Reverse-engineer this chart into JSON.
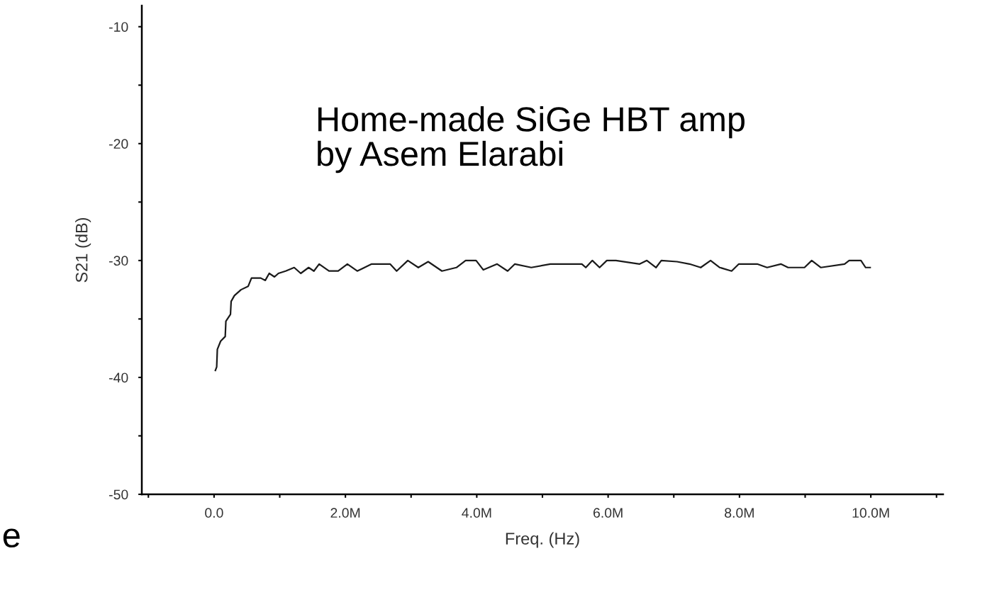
{
  "chart_data": {
    "type": "line",
    "xlabel": "Freq. (Hz)",
    "ylabel": "S21 (dB)",
    "annotations": [
      "Home-made SiGe HBT amp\nby Asem Elarabi",
      "e"
    ],
    "series": [
      {
        "color": "#1a1a1a",
        "x": [
          20000,
          40000,
          50000,
          100000,
          170000,
          180000,
          250000,
          260000,
          310000,
          410000,
          520000,
          570000,
          710000,
          780000,
          840000,
          920000,
          980000,
          1090000,
          1220000,
          1320000,
          1440000,
          1520000,
          1600000,
          1750000,
          1890000,
          2030000,
          2180000,
          2400000,
          2540000,
          2680000,
          2780000,
          2950000,
          3110000,
          3260000,
          3470000,
          3690000,
          3830000,
          3990000,
          4100000,
          4310000,
          4470000,
          4580000,
          4830000,
          5120000,
          5600000,
          5660000,
          5760000,
          5870000,
          5980000,
          6120000,
          6480000,
          6590000,
          6730000,
          6810000,
          7050000,
          7240000,
          7410000,
          7560000,
          7700000,
          7880000,
          7990000,
          8130000,
          8270000,
          8420000,
          8630000,
          8740000,
          8990000,
          9100000,
          9240000,
          9600000,
          9670000,
          9850000,
          9920000,
          9990000
        ],
        "values": [
          -39.4,
          -39.1,
          -37.6,
          -36.9,
          -36.5,
          -35.2,
          -34.6,
          -33.5,
          -33.0,
          -32.5,
          -32.2,
          -31.5,
          -31.5,
          -31.7,
          -31.1,
          -31.4,
          -31.1,
          -30.9,
          -30.6,
          -31.1,
          -30.6,
          -30.9,
          -30.3,
          -30.9,
          -30.9,
          -30.3,
          -30.9,
          -30.3,
          -30.3,
          -30.3,
          -30.9,
          -30.0,
          -30.6,
          -30.1,
          -30.9,
          -30.6,
          -30.0,
          -30.0,
          -30.8,
          -30.3,
          -30.9,
          -30.3,
          -30.6,
          -30.3,
          -30.3,
          -30.6,
          -30.0,
          -30.6,
          -30.0,
          -30.0,
          -30.3,
          -30.0,
          -30.6,
          -30.0,
          -30.1,
          -30.3,
          -30.6,
          -30.0,
          -30.6,
          -30.9,
          -30.3,
          -30.3,
          -30.3,
          -30.6,
          -30.3,
          -30.6,
          -30.6,
          -30.0,
          -30.6,
          -30.3,
          -30.0,
          -30.0,
          -30.6,
          -30.6
        ]
      }
    ],
    "xlim": [
      -1100000,
      11100000
    ],
    "xticks": [
      {
        "value": -1000000,
        "label": null
      },
      {
        "value": 0,
        "label": "0.0"
      },
      {
        "value": 1000000,
        "label": null
      },
      {
        "value": 2000000,
        "label": "2.0M"
      },
      {
        "value": 3000000,
        "label": null
      },
      {
        "value": 4000000,
        "label": "4.0M"
      },
      {
        "value": 5000000,
        "label": null
      },
      {
        "value": 6000000,
        "label": "6.0M"
      },
      {
        "value": 7000000,
        "label": null
      },
      {
        "value": 8000000,
        "label": "8.0M"
      },
      {
        "value": 9000000,
        "label": null
      },
      {
        "value": 10000000,
        "label": "10.0M"
      },
      {
        "value": 11000000,
        "label": null
      }
    ],
    "ylim": [
      -50,
      -8.2
    ],
    "yticks": [
      {
        "value": -50,
        "label": "-50"
      },
      {
        "value": -45,
        "label": null
      },
      {
        "value": -40,
        "label": "-40"
      },
      {
        "value": -35,
        "label": null
      },
      {
        "value": -30,
        "label": "-30"
      },
      {
        "value": -25,
        "label": null
      },
      {
        "value": -20,
        "label": "-20"
      },
      {
        "value": -15,
        "label": null
      },
      {
        "value": -10,
        "label": "-10"
      }
    ],
    "grid": false,
    "legend": false,
    "marker": "none",
    "line_style": "solid"
  }
}
